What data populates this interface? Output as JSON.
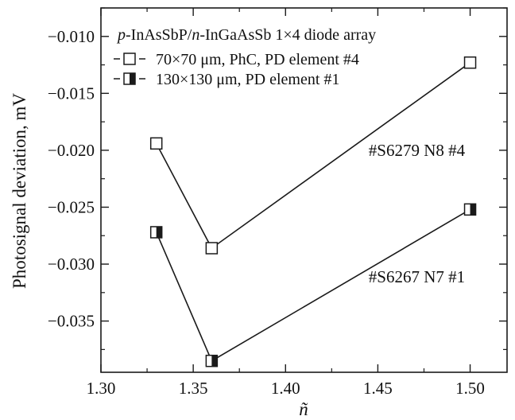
{
  "chart_data": {
    "type": "line",
    "title": "",
    "xlabel": "ñ",
    "ylabel": "Photosignal deviation, mV",
    "xlim": [
      1.3,
      1.52
    ],
    "ylim": [
      -0.0395,
      -0.0075
    ],
    "x_ticks": [
      1.3,
      1.35,
      1.4,
      1.45,
      1.5
    ],
    "x_tick_labels": [
      "1.30",
      "1.35",
      "1.40",
      "1.45",
      "1.50"
    ],
    "y_ticks": [
      -0.01,
      -0.015,
      -0.02,
      -0.025,
      -0.03,
      -0.035
    ],
    "y_tick_labels": [
      "−0.010",
      "−0.015",
      "−0.020",
      "−0.025",
      "−0.030",
      "−0.035"
    ],
    "grid": false,
    "legend": {
      "placement": "top-left",
      "title_parts": [
        "p",
        "-InAsSbP/",
        "n",
        "-InGaAsSb 1×4 diode array"
      ]
    },
    "series": [
      {
        "name": "70×70 μm, PhC, PD element #4",
        "marker": "open-square",
        "x": [
          1.33,
          1.36,
          1.5
        ],
        "y": [
          -0.0194,
          -0.0286,
          -0.0123
        ]
      },
      {
        "name": "130×130 μm, PD element #1",
        "marker": "half-filled-square",
        "x": [
          1.33,
          1.36,
          1.5
        ],
        "y": [
          -0.0272,
          -0.0385,
          -0.0252
        ]
      }
    ],
    "annotations": [
      {
        "text": "#S6279 N8 #4",
        "x": 1.445,
        "y": -0.0205
      },
      {
        "text": "#S6267 N7 #1",
        "x": 1.445,
        "y": -0.0316
      }
    ],
    "colors": {
      "line": "#1a1a1a",
      "marker_fill": "#1a1a1a",
      "background": "#ffffff"
    }
  }
}
